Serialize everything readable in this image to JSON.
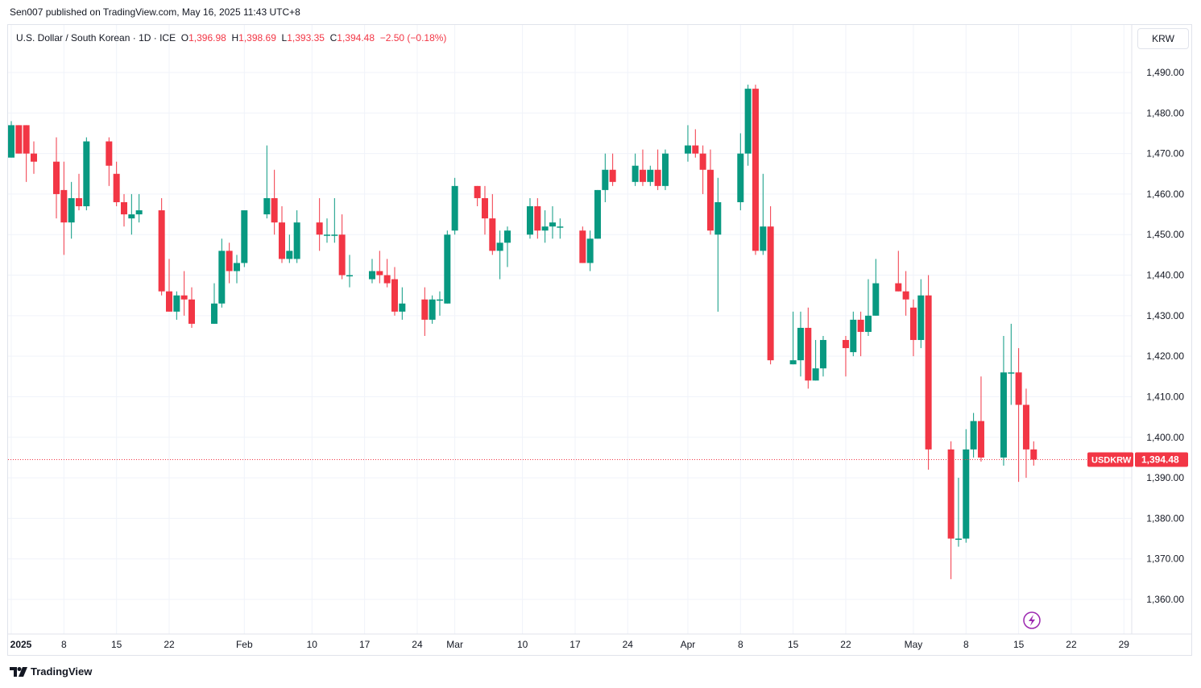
{
  "publisher_line": "Sen007 published on TradingView.com, May 16, 2025 11:43 UTC+8",
  "legend": {
    "symbol": "U.S. Dollar / South Korean · 1D · ICE",
    "o_key": "O",
    "o_val": "1,396.98",
    "h_key": "H",
    "h_val": "1,398.69",
    "l_key": "L",
    "l_val": "1,393.35",
    "c_key": "C",
    "c_val": "1,394.48",
    "change": "−2.50 (−0.18%)"
  },
  "currency_button": "KRW",
  "footer_brand": "TradingView",
  "colors": {
    "up": "#089981",
    "down": "#f23645",
    "grid": "#f0f3fa",
    "text": "#131722",
    "accent": "#9c27b0"
  },
  "chart_data": {
    "type": "candlestick",
    "ylim": [
      1352,
      1499
    ],
    "y_ticks": [
      {
        "value": 1490,
        "label": "1,490.00"
      },
      {
        "value": 1480,
        "label": "1,480.00"
      },
      {
        "value": 1470,
        "label": "1,470.00"
      },
      {
        "value": 1460,
        "label": "1,460.00"
      },
      {
        "value": 1450,
        "label": "1,450.00"
      },
      {
        "value": 1440,
        "label": "1,440.00"
      },
      {
        "value": 1430,
        "label": "1,430.00"
      },
      {
        "value": 1420,
        "label": "1,420.00"
      },
      {
        "value": 1410,
        "label": "1,410.00"
      },
      {
        "value": 1400,
        "label": "1,400.00"
      },
      {
        "value": 1390,
        "label": "1,390.00"
      },
      {
        "value": 1380,
        "label": "1,380.00"
      },
      {
        "value": 1370,
        "label": "1,370.00"
      },
      {
        "value": 1360,
        "label": "1,360.00"
      }
    ],
    "x_ticks": [
      {
        "label": "2025",
        "day": 0,
        "bold": true
      },
      {
        "label": "8",
        "day": 7
      },
      {
        "label": "15",
        "day": 14
      },
      {
        "label": "22",
        "day": 21
      },
      {
        "label": "Feb",
        "day": 31
      },
      {
        "label": "10",
        "day": 40
      },
      {
        "label": "17",
        "day": 47
      },
      {
        "label": "24",
        "day": 54
      },
      {
        "label": "Mar",
        "day": 59
      },
      {
        "label": "10",
        "day": 68
      },
      {
        "label": "17",
        "day": 75
      },
      {
        "label": "24",
        "day": 82
      },
      {
        "label": "Apr",
        "day": 90
      },
      {
        "label": "8",
        "day": 97
      },
      {
        "label": "15",
        "day": 104
      },
      {
        "label": "22",
        "day": 111
      },
      {
        "label": "May",
        "day": 120
      },
      {
        "label": "8",
        "day": 127
      },
      {
        "label": "15",
        "day": 134
      },
      {
        "label": "22",
        "day": 141
      },
      {
        "label": "29",
        "day": 148
      }
    ],
    "last_price": {
      "value": 1394.48,
      "label": "1,394.48",
      "symbol": "USDKRW"
    },
    "candles": [
      {
        "day": 0,
        "o": 1469,
        "h": 1478,
        "l": 1469,
        "c": 1477
      },
      {
        "day": 1,
        "o": 1477,
        "h": 1477,
        "l": 1470,
        "c": 1470
      },
      {
        "day": 2,
        "o": 1477,
        "h": 1477,
        "l": 1463,
        "c": 1470
      },
      {
        "day": 3,
        "o": 1470,
        "h": 1473,
        "l": 1465,
        "c": 1468
      },
      {
        "day": 6,
        "o": 1468,
        "h": 1474,
        "l": 1454,
        "c": 1460
      },
      {
        "day": 7,
        "o": 1461,
        "h": 1468,
        "l": 1445,
        "c": 1453
      },
      {
        "day": 8,
        "o": 1453,
        "h": 1463,
        "l": 1449,
        "c": 1459
      },
      {
        "day": 9,
        "o": 1459,
        "h": 1465,
        "l": 1456,
        "c": 1457
      },
      {
        "day": 10,
        "o": 1457,
        "h": 1474,
        "l": 1456,
        "c": 1473
      },
      {
        "day": 13,
        "o": 1473,
        "h": 1474,
        "l": 1462,
        "c": 1467
      },
      {
        "day": 14,
        "o": 1465,
        "h": 1468,
        "l": 1457,
        "c": 1458
      },
      {
        "day": 15,
        "o": 1458,
        "h": 1460,
        "l": 1452,
        "c": 1455
      },
      {
        "day": 16,
        "o": 1454,
        "h": 1460,
        "l": 1450,
        "c": 1455
      },
      {
        "day": 17,
        "o": 1455,
        "h": 1460,
        "l": 1453,
        "c": 1456
      },
      {
        "day": 20,
        "o": 1456,
        "h": 1459,
        "l": 1435,
        "c": 1436
      },
      {
        "day": 21,
        "o": 1436,
        "h": 1444,
        "l": 1431,
        "c": 1431
      },
      {
        "day": 22,
        "o": 1431,
        "h": 1436,
        "l": 1429,
        "c": 1435
      },
      {
        "day": 23,
        "o": 1435,
        "h": 1441,
        "l": 1430,
        "c": 1434
      },
      {
        "day": 24,
        "o": 1434,
        "h": 1437,
        "l": 1427,
        "c": 1428
      },
      {
        "day": 27,
        "o": 1428,
        "h": 1438,
        "l": 1428,
        "c": 1433
      },
      {
        "day": 28,
        "o": 1433,
        "h": 1449,
        "l": 1432,
        "c": 1446
      },
      {
        "day": 29,
        "o": 1446,
        "h": 1448,
        "l": 1438,
        "c": 1441
      },
      {
        "day": 30,
        "o": 1441,
        "h": 1445,
        "l": 1438,
        "c": 1443
      },
      {
        "day": 31,
        "o": 1443,
        "h": 1456,
        "l": 1442,
        "c": 1456
      },
      {
        "day": 34,
        "o": 1455,
        "h": 1472,
        "l": 1454,
        "c": 1459
      },
      {
        "day": 35,
        "o": 1459,
        "h": 1466,
        "l": 1450,
        "c": 1453
      },
      {
        "day": 36,
        "o": 1453,
        "h": 1457,
        "l": 1443,
        "c": 1444
      },
      {
        "day": 37,
        "o": 1444,
        "h": 1450,
        "l": 1443,
        "c": 1446
      },
      {
        "day": 38,
        "o": 1444,
        "h": 1456,
        "l": 1443,
        "c": 1453
      },
      {
        "day": 41,
        "o": 1453,
        "h": 1459,
        "l": 1446,
        "c": 1450
      },
      {
        "day": 42,
        "o": 1450,
        "h": 1454,
        "l": 1448,
        "c": 1450
      },
      {
        "day": 43,
        "o": 1450,
        "h": 1459,
        "l": 1448,
        "c": 1450
      },
      {
        "day": 44,
        "o": 1450,
        "h": 1455,
        "l": 1439,
        "c": 1440
      },
      {
        "day": 45,
        "o": 1440,
        "h": 1445,
        "l": 1437,
        "c": 1440
      },
      {
        "day": 48,
        "o": 1439,
        "h": 1444,
        "l": 1438,
        "c": 1441
      },
      {
        "day": 49,
        "o": 1441,
        "h": 1446,
        "l": 1438,
        "c": 1440
      },
      {
        "day": 50,
        "o": 1440,
        "h": 1444,
        "l": 1437,
        "c": 1438
      },
      {
        "day": 51,
        "o": 1439,
        "h": 1442,
        "l": 1430,
        "c": 1431
      },
      {
        "day": 52,
        "o": 1431,
        "h": 1437,
        "l": 1429,
        "c": 1433
      },
      {
        "day": 55,
        "o": 1434,
        "h": 1437,
        "l": 1425,
        "c": 1429
      },
      {
        "day": 56,
        "o": 1429,
        "h": 1435,
        "l": 1428,
        "c": 1434
      },
      {
        "day": 57,
        "o": 1434,
        "h": 1436,
        "l": 1430,
        "c": 1434
      },
      {
        "day": 58,
        "o": 1433,
        "h": 1451,
        "l": 1433,
        "c": 1450
      },
      {
        "day": 59,
        "o": 1451,
        "h": 1464,
        "l": 1450,
        "c": 1462
      },
      {
        "day": 62,
        "o": 1462,
        "h": 1462,
        "l": 1457,
        "c": 1459
      },
      {
        "day": 63,
        "o": 1459,
        "h": 1462,
        "l": 1450,
        "c": 1454
      },
      {
        "day": 64,
        "o": 1454,
        "h": 1460,
        "l": 1445,
        "c": 1446
      },
      {
        "day": 65,
        "o": 1446,
        "h": 1451,
        "l": 1439,
        "c": 1448
      },
      {
        "day": 66,
        "o": 1448,
        "h": 1452,
        "l": 1442,
        "c": 1451
      },
      {
        "day": 69,
        "o": 1450,
        "h": 1459,
        "l": 1449,
        "c": 1457
      },
      {
        "day": 70,
        "o": 1457,
        "h": 1459,
        "l": 1449,
        "c": 1451
      },
      {
        "day": 71,
        "o": 1451,
        "h": 1456,
        "l": 1448,
        "c": 1452
      },
      {
        "day": 72,
        "o": 1452,
        "h": 1457,
        "l": 1449,
        "c": 1453
      },
      {
        "day": 73,
        "o": 1452,
        "h": 1454,
        "l": 1449,
        "c": 1452
      },
      {
        "day": 76,
        "o": 1451,
        "h": 1452,
        "l": 1443,
        "c": 1443
      },
      {
        "day": 77,
        "o": 1443,
        "h": 1451,
        "l": 1441,
        "c": 1449
      },
      {
        "day": 78,
        "o": 1449,
        "h": 1461,
        "l": 1449,
        "c": 1461
      },
      {
        "day": 79,
        "o": 1461,
        "h": 1470,
        "l": 1458,
        "c": 1466
      },
      {
        "day": 80,
        "o": 1466,
        "h": 1470,
        "l": 1462,
        "c": 1463
      },
      {
        "day": 83,
        "o": 1463,
        "h": 1470,
        "l": 1462,
        "c": 1467
      },
      {
        "day": 84,
        "o": 1466,
        "h": 1471,
        "l": 1462,
        "c": 1463
      },
      {
        "day": 85,
        "o": 1463,
        "h": 1467,
        "l": 1462,
        "c": 1466
      },
      {
        "day": 86,
        "o": 1466,
        "h": 1471,
        "l": 1461,
        "c": 1462
      },
      {
        "day": 87,
        "o": 1462,
        "h": 1471,
        "l": 1461,
        "c": 1470
      },
      {
        "day": 90,
        "o": 1470,
        "h": 1477,
        "l": 1468,
        "c": 1472
      },
      {
        "day": 91,
        "o": 1472,
        "h": 1476,
        "l": 1469,
        "c": 1470
      },
      {
        "day": 92,
        "o": 1470,
        "h": 1472,
        "l": 1460,
        "c": 1466
      },
      {
        "day": 93,
        "o": 1466,
        "h": 1471,
        "l": 1450,
        "c": 1451
      },
      {
        "day": 94,
        "o": 1450,
        "h": 1464,
        "l": 1431,
        "c": 1458
      },
      {
        "day": 97,
        "o": 1458,
        "h": 1475,
        "l": 1456,
        "c": 1470
      },
      {
        "day": 98,
        "o": 1470,
        "h": 1487,
        "l": 1467,
        "c": 1486
      },
      {
        "day": 99,
        "o": 1486,
        "h": 1487,
        "l": 1445,
        "c": 1446
      },
      {
        "day": 100,
        "o": 1446,
        "h": 1465,
        "l": 1445,
        "c": 1452
      },
      {
        "day": 101,
        "o": 1452,
        "h": 1457,
        "l": 1418,
        "c": 1419
      },
      {
        "day": 104,
        "o": 1418,
        "h": 1431,
        "l": 1418,
        "c": 1419
      },
      {
        "day": 105,
        "o": 1419,
        "h": 1431,
        "l": 1415,
        "c": 1427
      },
      {
        "day": 106,
        "o": 1427,
        "h": 1432,
        "l": 1412,
        "c": 1414
      },
      {
        "day": 107,
        "o": 1414,
        "h": 1424,
        "l": 1414,
        "c": 1417
      },
      {
        "day": 108,
        "o": 1417,
        "h": 1425,
        "l": 1415,
        "c": 1424
      },
      {
        "day": 111,
        "o": 1424,
        "h": 1425,
        "l": 1415,
        "c": 1422
      },
      {
        "day": 112,
        "o": 1421,
        "h": 1431,
        "l": 1420,
        "c": 1429
      },
      {
        "day": 113,
        "o": 1429,
        "h": 1431,
        "l": 1420,
        "c": 1426
      },
      {
        "day": 114,
        "o": 1426,
        "h": 1439,
        "l": 1425,
        "c": 1430
      },
      {
        "day": 115,
        "o": 1430,
        "h": 1444,
        "l": 1430,
        "c": 1438
      },
      {
        "day": 118,
        "o": 1438,
        "h": 1446,
        "l": 1436,
        "c": 1436
      },
      {
        "day": 119,
        "o": 1436,
        "h": 1441,
        "l": 1430,
        "c": 1434
      },
      {
        "day": 120,
        "o": 1432,
        "h": 1434,
        "l": 1420,
        "c": 1424
      },
      {
        "day": 121,
        "o": 1424,
        "h": 1439,
        "l": 1422,
        "c": 1435
      },
      {
        "day": 122,
        "o": 1435,
        "h": 1440,
        "l": 1392,
        "c": 1397
      },
      {
        "day": 125,
        "o": 1397,
        "h": 1399,
        "l": 1365,
        "c": 1375
      },
      {
        "day": 126,
        "o": 1375,
        "h": 1390,
        "l": 1373,
        "c": 1375
      },
      {
        "day": 127,
        "o": 1375,
        "h": 1402,
        "l": 1374,
        "c": 1397
      },
      {
        "day": 128,
        "o": 1397,
        "h": 1406,
        "l": 1395,
        "c": 1404
      },
      {
        "day": 129,
        "o": 1404,
        "h": 1415,
        "l": 1394,
        "c": 1395
      },
      {
        "day": 132,
        "o": 1395,
        "h": 1425,
        "l": 1393,
        "c": 1416
      },
      {
        "day": 133,
        "o": 1416,
        "h": 1428,
        "l": 1408,
        "c": 1416
      },
      {
        "day": 134,
        "o": 1416,
        "h": 1422,
        "l": 1389,
        "c": 1408
      },
      {
        "day": 135,
        "o": 1408,
        "h": 1412,
        "l": 1390,
        "c": 1397
      },
      {
        "day": 136,
        "o": 1397,
        "h": 1399,
        "l": 1393,
        "c": 1394.48
      }
    ]
  }
}
